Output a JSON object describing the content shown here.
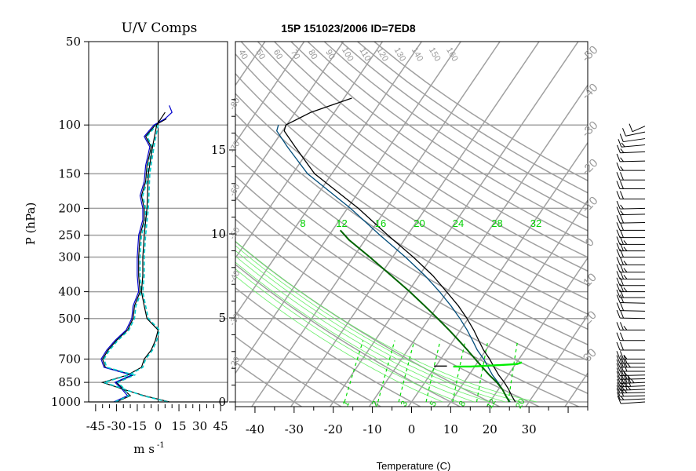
{
  "chart_data": [
    {
      "type": "line",
      "title": "U/V Comps",
      "xlabel": "m s",
      "xlabel_exponent": "-1",
      "ylabel": "P (hPa)",
      "xlim": [
        -50,
        50
      ],
      "xticks": [
        -45,
        -30,
        -15,
        0,
        15,
        30,
        45
      ],
      "yticks": [
        50,
        100,
        150,
        200,
        250,
        300,
        400,
        500,
        700,
        850,
        1000
      ],
      "gridlines_p": [
        100,
        150,
        200,
        250,
        300,
        400,
        500,
        700,
        850,
        1000
      ],
      "series": [
        {
          "color": "#000000",
          "p": [
            1000,
            950,
            900,
            850,
            800,
            750,
            700,
            650,
            600,
            550,
            500,
            450,
            400,
            350,
            300,
            250,
            220,
            200,
            180,
            160,
            140,
            120,
            110,
            100,
            95
          ],
          "v": [
            -30,
            -20,
            -25,
            -30,
            -18,
            -38,
            -40,
            -36,
            -30,
            -22,
            -18,
            -17,
            -13,
            -14,
            -14,
            -13,
            -10,
            -10,
            -12,
            -9,
            -8,
            -5,
            -9,
            -2,
            6
          ]
        },
        {
          "color": "#0000cc",
          "p": [
            1000,
            950,
            900,
            850,
            800,
            750,
            700,
            650,
            600,
            550,
            500,
            450,
            400,
            350,
            300,
            250,
            220,
            200,
            180,
            160,
            140,
            120,
            110,
            100,
            95,
            90,
            85
          ],
          "v": [
            -32,
            -22,
            -26,
            -31,
            -19,
            -39,
            -41,
            -37,
            -31,
            -23,
            -19,
            -18,
            -14,
            -15,
            -15,
            -14,
            -11,
            -11,
            -13,
            -10,
            -9,
            -6,
            -10,
            -3,
            5,
            10,
            8
          ]
        },
        {
          "color": "#00cccc",
          "dashed": true,
          "p": [
            1000,
            950,
            900,
            850,
            800,
            750,
            700,
            650,
            600,
            550,
            500,
            450,
            400,
            350,
            300,
            250,
            220,
            200,
            180,
            160,
            140,
            120,
            110,
            100
          ],
          "v": [
            -31,
            -21,
            -24,
            -29,
            -17,
            -37,
            -39,
            -35,
            -29,
            -21,
            -17,
            -16,
            -12,
            -13,
            -13,
            -12,
            -9,
            -9,
            -11,
            -8,
            -7,
            -4,
            -8,
            -1
          ]
        },
        {
          "color": "#000000",
          "p": [
            1000,
            950,
            900,
            850,
            800,
            750,
            700,
            650,
            600,
            550,
            500,
            450,
            400,
            350,
            300,
            250,
            200,
            150,
            120,
            100,
            90
          ],
          "v": [
            8,
            -10,
            -25,
            -40,
            -22,
            -12,
            -10,
            -5,
            -2,
            0,
            -8,
            -10,
            -12,
            -11,
            -11,
            -10,
            -8,
            -7,
            -4,
            -1,
            5
          ]
        },
        {
          "color": "#00cccc",
          "dashed": true,
          "p": [
            1000,
            950,
            900,
            850,
            800,
            750,
            700,
            650,
            600,
            550,
            500,
            450,
            400,
            350,
            300,
            250,
            200,
            150,
            120,
            100
          ],
          "v": [
            7,
            -11,
            -24,
            -39,
            -21,
            -11,
            -9,
            -4,
            -1,
            1,
            -7,
            -9,
            -11,
            -10,
            -10,
            -9,
            -7,
            -6,
            -3,
            0
          ]
        }
      ]
    },
    {
      "type": "line",
      "title": "15P 151023/2006 ID=7ED8",
      "xlabel": "Temperature (C)",
      "xlim": [
        -45,
        45
      ],
      "xticks": [
        -40,
        -30,
        -20,
        -10,
        0,
        10,
        20,
        30
      ],
      "height_ticks_km": [
        0,
        5,
        10,
        15
      ],
      "isobars_hpa": [
        100,
        150,
        200,
        250,
        300,
        400,
        500,
        700,
        850,
        1000
      ],
      "dry_adiabat_labels": [
        40,
        50,
        60,
        70,
        80,
        90,
        100,
        110,
        120,
        130,
        140,
        150,
        160
      ],
      "isotherm_labels_right": [
        -50,
        -40,
        -30,
        -20,
        -10,
        0,
        10,
        20,
        30
      ],
      "isotherm_labels_left": [
        -80,
        -70,
        -60,
        -50,
        -40,
        -30,
        -20
      ],
      "moist_adiabat_labels": [
        8,
        12,
        16,
        20,
        24,
        28,
        32
      ],
      "mixing_ratio_labels": [
        1,
        2,
        3,
        5,
        8,
        12,
        20
      ],
      "series": [
        {
          "name": "temperature",
          "color": "#000000",
          "p": [
            1000,
            950,
            900,
            850,
            800,
            750,
            700,
            650,
            600,
            550,
            500,
            450,
            400,
            350,
            300,
            250,
            200,
            150,
            120,
            105,
            100,
            90,
            80
          ],
          "t": [
            26.5,
            24.5,
            22.6,
            20.3,
            17.6,
            15.1,
            12.5,
            9.4,
            6.5,
            3.4,
            -0.3,
            -4.7,
            -10.2,
            -16.5,
            -24.7,
            -35.0,
            -47.2,
            -64.4,
            -74.0,
            -79.6,
            -80.2,
            -76.0,
            -68.0
          ]
        },
        {
          "name": "dewpoint",
          "color": "#004c7a",
          "p": [
            1000,
            950,
            900,
            850,
            800,
            750,
            700,
            650,
            600,
            550,
            500,
            450,
            400,
            350,
            300,
            250,
            200,
            150,
            120,
            105,
            100
          ],
          "t": [
            25.2,
            23.0,
            21.0,
            18.7,
            16.0,
            13.6,
            11.0,
            7.8,
            4.9,
            1.7,
            -2.1,
            -6.6,
            -12.0,
            -18.5,
            -26.7,
            -37.0,
            -49.2,
            -66.2,
            -76.0,
            -81.5,
            -82.1
          ]
        },
        {
          "name": "parcel",
          "color": "#006400",
          "p": [
            1000,
            950,
            900,
            850,
            800,
            750,
            700,
            650,
            600,
            550,
            500,
            450,
            400,
            350,
            300,
            260,
            240
          ],
          "t": [
            25.0,
            23.0,
            21.0,
            18.4,
            15.2,
            12.1,
            8.8,
            5.3,
            1.4,
            -2.9,
            -7.8,
            -13.3,
            -19.6,
            -27.1,
            -35.8,
            -44.1,
            -48.0
          ]
        },
        {
          "name": "lifted",
          "color": "#00ee00",
          "p": [
            745,
            745,
            740,
            735,
            730,
            720
          ],
          "t": [
            4.5,
            9.0,
            13.0,
            17.0,
            20.3,
            21.3
          ]
        },
        {
          "name": "surface-wind",
          "color": "#000000",
          "p": [
            742,
            742
          ],
          "t": [
            -0.5,
            2.8
          ]
        }
      ]
    }
  ],
  "wind_barbs": [
    {
      "p": 1000,
      "dir": 105,
      "spd": 10
    },
    {
      "p": 975,
      "dir": 100,
      "spd": 15
    },
    {
      "p": 950,
      "dir": 95,
      "spd": 20
    },
    {
      "p": 925,
      "dir": 95,
      "spd": 25
    },
    {
      "p": 900,
      "dir": 100,
      "spd": 35
    },
    {
      "p": 875,
      "dir": 100,
      "spd": 40
    },
    {
      "p": 850,
      "dir": 100,
      "spd": 45
    },
    {
      "p": 825,
      "dir": 95,
      "spd": 35
    },
    {
      "p": 800,
      "dir": 95,
      "spd": 25
    },
    {
      "p": 775,
      "dir": 90,
      "spd": 30
    },
    {
      "p": 750,
      "dir": 90,
      "spd": 35
    },
    {
      "p": 725,
      "dir": 90,
      "spd": 30
    },
    {
      "p": 700,
      "dir": 90,
      "spd": 25
    },
    {
      "p": 650,
      "dir": 90,
      "spd": 20
    },
    {
      "p": 600,
      "dir": 90,
      "spd": 20
    },
    {
      "p": 550,
      "dir": 90,
      "spd": 25
    },
    {
      "p": 500,
      "dir": 85,
      "spd": 20
    },
    {
      "p": 470,
      "dir": 85,
      "spd": 20
    },
    {
      "p": 440,
      "dir": 85,
      "spd": 20
    },
    {
      "p": 420,
      "dir": 90,
      "spd": 20
    },
    {
      "p": 400,
      "dir": 90,
      "spd": 25
    },
    {
      "p": 380,
      "dir": 90,
      "spd": 20
    },
    {
      "p": 360,
      "dir": 90,
      "spd": 25
    },
    {
      "p": 340,
      "dir": 90,
      "spd": 25
    },
    {
      "p": 320,
      "dir": 90,
      "spd": 25
    },
    {
      "p": 300,
      "dir": 90,
      "spd": 20
    },
    {
      "p": 285,
      "dir": 90,
      "spd": 25
    },
    {
      "p": 270,
      "dir": 90,
      "spd": 25
    },
    {
      "p": 255,
      "dir": 90,
      "spd": 20
    },
    {
      "p": 240,
      "dir": 90,
      "spd": 20
    },
    {
      "p": 225,
      "dir": 95,
      "spd": 20
    },
    {
      "p": 210,
      "dir": 95,
      "spd": 15
    },
    {
      "p": 200,
      "dir": 95,
      "spd": 15
    },
    {
      "p": 185,
      "dir": 90,
      "spd": 20
    },
    {
      "p": 170,
      "dir": 90,
      "spd": 20
    },
    {
      "p": 158,
      "dir": 90,
      "spd": 20
    },
    {
      "p": 146,
      "dir": 90,
      "spd": 15
    },
    {
      "p": 135,
      "dir": 95,
      "spd": 15
    },
    {
      "p": 125,
      "dir": 100,
      "spd": 15
    },
    {
      "p": 118,
      "dir": 110,
      "spd": 15
    },
    {
      "p": 112,
      "dir": 120,
      "spd": 10
    },
    {
      "p": 106,
      "dir": 130,
      "spd": 10
    },
    {
      "p": 101,
      "dir": 150,
      "spd": 10
    }
  ],
  "colors": {
    "grid": "#a0a0a0",
    "frame": "#000000",
    "moist_label": "#00d000",
    "mixing_ratio": "#00dd00",
    "moist_line": "#66ee66"
  }
}
